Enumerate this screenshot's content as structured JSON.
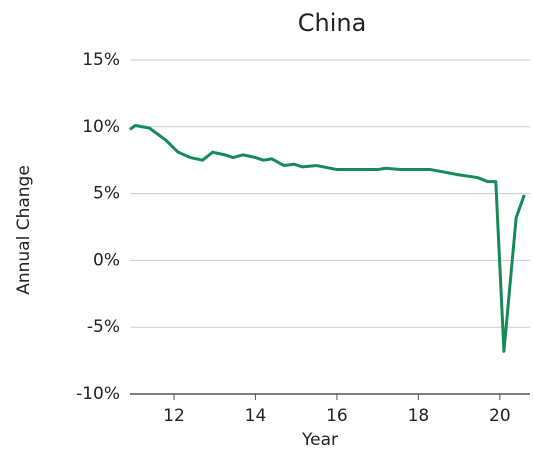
{
  "chart_data": {
    "type": "line",
    "title": "China",
    "x_label": "Year",
    "y_label": "Annual Change",
    "x": [
      10.92,
      11.05,
      11.4,
      11.8,
      12.1,
      12.4,
      12.7,
      12.95,
      13.25,
      13.45,
      13.7,
      14.0,
      14.2,
      14.4,
      14.7,
      14.95,
      15.15,
      15.5,
      16.0,
      16.45,
      17.0,
      17.2,
      17.55,
      18.3,
      19.0,
      19.45,
      19.7,
      19.9,
      20.1,
      20.4,
      20.6
    ],
    "series": [
      {
        "name": "China",
        "color": "#178a5a",
        "values": [
          9.8,
          10.1,
          9.9,
          9.0,
          8.1,
          7.7,
          7.5,
          8.1,
          7.9,
          7.7,
          7.9,
          7.7,
          7.5,
          7.6,
          7.1,
          7.2,
          7.0,
          7.1,
          6.8,
          6.8,
          6.8,
          6.9,
          6.8,
          6.8,
          6.4,
          6.2,
          5.9,
          5.9,
          -6.8,
          3.2,
          4.9
        ]
      }
    ],
    "xlim": [
      10.92,
      20.74
    ],
    "xticks": [
      12,
      14,
      16,
      18,
      20
    ],
    "ylim": [
      -10,
      15
    ],
    "yticks": [
      {
        "value": -10,
        "label": "-10%"
      },
      {
        "value": -5,
        "label": "-5%"
      },
      {
        "value": 0,
        "label": "0%"
      },
      {
        "value": 5,
        "label": "5%"
      },
      {
        "value": 10,
        "label": "10%"
      },
      {
        "value": 15,
        "label": "15%"
      }
    ],
    "grid": true
  }
}
